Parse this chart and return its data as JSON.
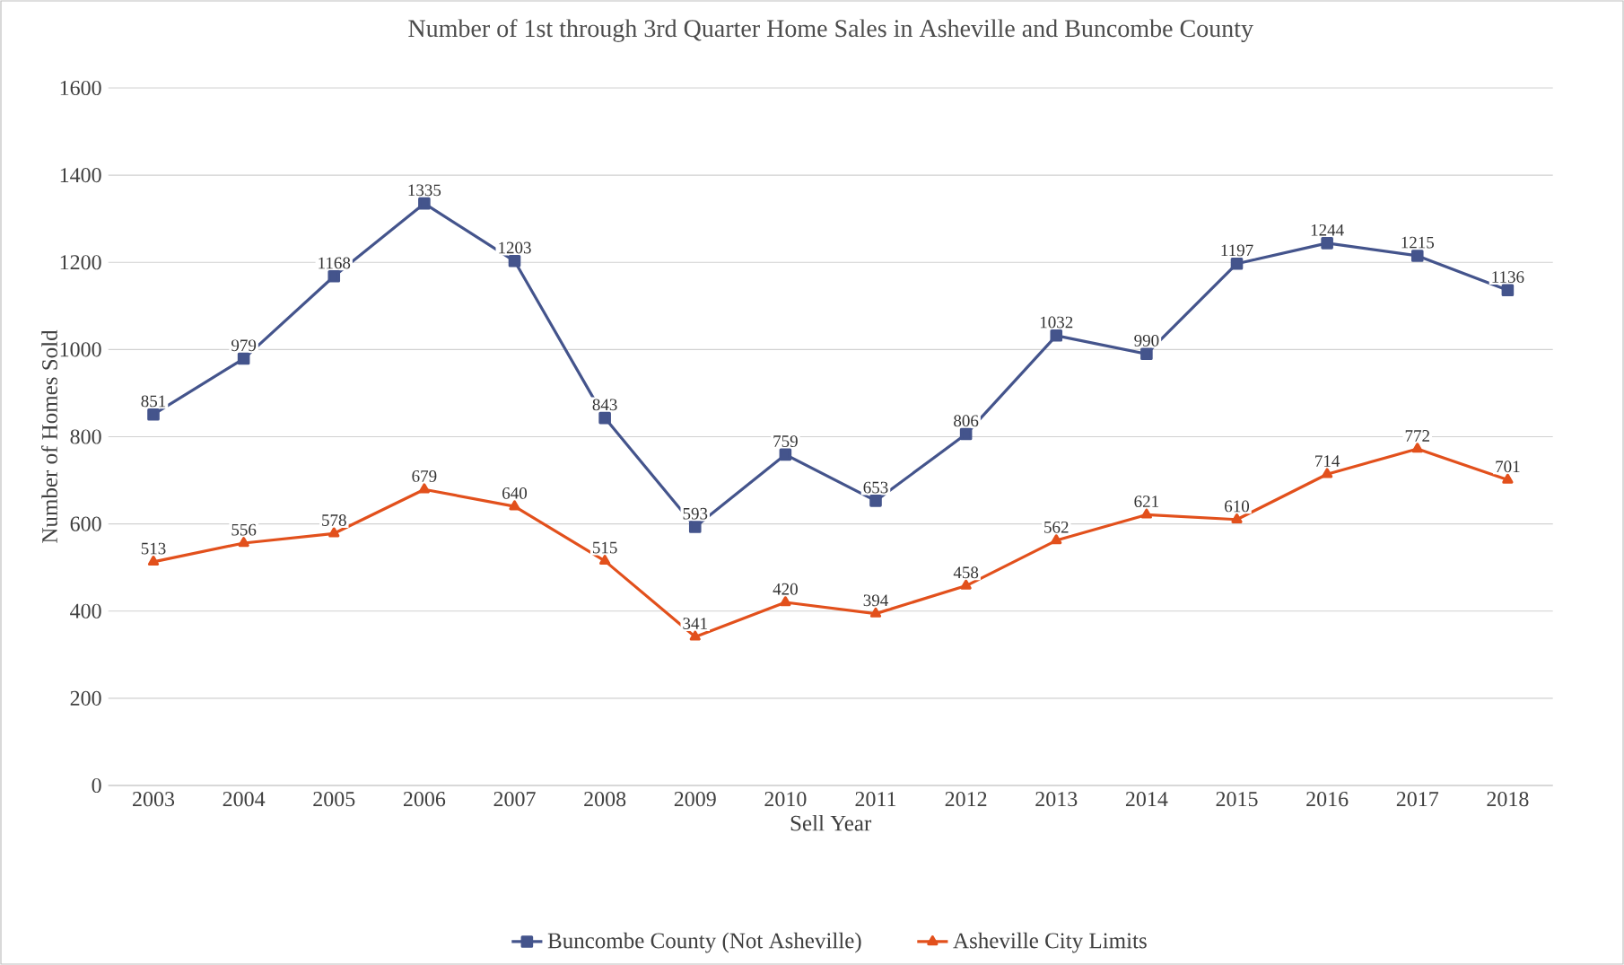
{
  "chart_data": {
    "type": "line",
    "title": "Number of 1st through 3rd Quarter Home Sales in Asheville and Buncombe County",
    "xlabel": "Sell Year",
    "ylabel": "Number of Homes Sold",
    "categories": [
      "2003",
      "2004",
      "2005",
      "2006",
      "2007",
      "2008",
      "2009",
      "2010",
      "2011",
      "2012",
      "2013",
      "2014",
      "2015",
      "2016",
      "2017",
      "2018"
    ],
    "series": [
      {
        "name": "Buncombe County (Not Asheville)",
        "color": "#44548c",
        "marker": "square",
        "values": [
          851,
          979,
          1168,
          1335,
          1203,
          843,
          593,
          759,
          653,
          806,
          1032,
          990,
          1197,
          1244,
          1215,
          1136
        ]
      },
      {
        "name": "Asheville City Limits",
        "color": "#e2501c",
        "marker": "triangle",
        "values": [
          513,
          556,
          578,
          679,
          640,
          515,
          341,
          420,
          394,
          458,
          562,
          621,
          610,
          714,
          772,
          701
        ]
      }
    ],
    "ylim": [
      0,
      1600
    ],
    "yticks": [
      0,
      200,
      400,
      600,
      800,
      1000,
      1200,
      1400,
      1600
    ],
    "grid": "y",
    "legend": "bottom",
    "data_labels": true,
    "line_style": "solid"
  }
}
